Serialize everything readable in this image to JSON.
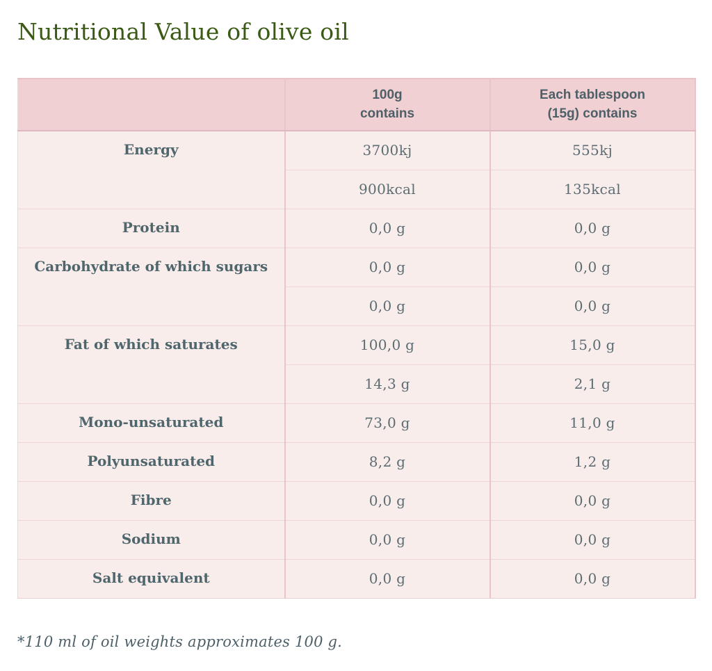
{
  "page": {
    "title": "Nutritional Value of olive oil",
    "footnote": "*110 ml of oil weights approximates 100 g."
  },
  "table": {
    "headers": [
      "",
      "100g\ncontains",
      "Each tablespoon\n(15g) contains"
    ],
    "rows": [
      {
        "label": "Energy",
        "values": [
          [
            "3700kj",
            "555kj"
          ],
          [
            "900kcal",
            "135kcal"
          ]
        ]
      },
      {
        "label": "Protein",
        "values": [
          [
            "0,0 g",
            "0,0 g"
          ]
        ]
      },
      {
        "label": "Carbohydrate of which sugars",
        "values": [
          [
            "0,0 g",
            "0,0 g"
          ],
          [
            "0,0 g",
            "0,0 g"
          ]
        ]
      },
      {
        "label": "Fat of which saturates",
        "values": [
          [
            "100,0 g",
            "15,0 g"
          ],
          [
            "14,3 g",
            "2,1 g"
          ]
        ]
      },
      {
        "label": "Mono-unsaturated",
        "values": [
          [
            "73,0 g",
            "11,0 g"
          ]
        ]
      },
      {
        "label": "Polyunsaturated",
        "values": [
          [
            "8,2 g",
            "1,2 g"
          ]
        ]
      },
      {
        "label": "Fibre",
        "values": [
          [
            "0,0 g",
            "0,0 g"
          ]
        ]
      },
      {
        "label": "Sodium",
        "values": [
          [
            "0,0 g",
            "0,0 g"
          ]
        ]
      },
      {
        "label": "Salt equivalent",
        "values": [
          [
            "0,0 g",
            "0,0 g"
          ]
        ]
      }
    ]
  },
  "colors": {
    "title_green": "#3a5a15",
    "header_bg": "#f0d0d3",
    "row_bg": "#f9edec",
    "border_pink": "#e7c5c8",
    "header_text": "#4e6067",
    "label_text": "#4f666d",
    "value_text": "#5b6c73"
  }
}
